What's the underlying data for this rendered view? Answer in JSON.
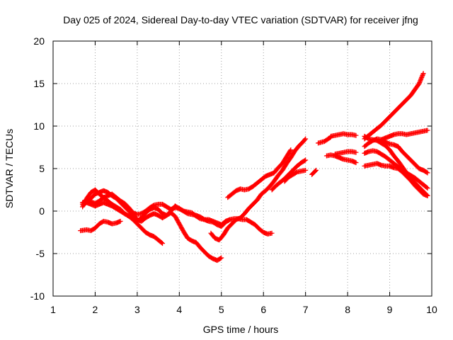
{
  "chart_data": {
    "type": "scatter",
    "title": "Day 025 of 2024, Sidereal Day-to-day VTEC variation (SDTVAR) for receiver jfng",
    "xlabel": "GPS time / hours",
    "ylabel": "SDTVAR / TECUs",
    "xlim": [
      1,
      10
    ],
    "ylim": [
      -10,
      20
    ],
    "xticks": [
      "1",
      "2",
      "3",
      "4",
      "5",
      "6",
      "7",
      "8",
      "9",
      "10"
    ],
    "yticks": [
      "-10",
      "-5",
      "0",
      "5",
      "10",
      "15",
      "20"
    ],
    "grid": true,
    "marker": "+",
    "color": "#ff0000",
    "series": [
      {
        "x": [
          1.65,
          1.8,
          1.9,
          2.0,
          2.1,
          2.2,
          2.3,
          2.4,
          2.5,
          2.6
        ],
        "y": [
          -2.3,
          -2.2,
          -2.3,
          -2.0,
          -1.5,
          -1.2,
          -1.3,
          -1.5,
          -1.4,
          -1.2
        ]
      },
      {
        "x": [
          1.7,
          1.8,
          1.9,
          2.0,
          2.1,
          2.2,
          2.3,
          2.4,
          2.5,
          2.6,
          2.7,
          2.8,
          2.9,
          3.0,
          3.1,
          3.2,
          3.3,
          3.4,
          3.5,
          3.6
        ],
        "y": [
          0.5,
          1.5,
          2.2,
          2.5,
          2.0,
          1.6,
          1.2,
          0.8,
          0.5,
          0.2,
          -0.3,
          -0.6,
          -1.0,
          -1.5,
          -2.0,
          -2.5,
          -2.8,
          -3.0,
          -3.4,
          -3.8
        ]
      },
      {
        "x": [
          1.7,
          1.8,
          1.9,
          2.0,
          2.1,
          2.2,
          2.3,
          2.4,
          2.5,
          2.6,
          2.7,
          2.8,
          2.9,
          3.0,
          3.1,
          3.2,
          3.3,
          3.4,
          3.5,
          3.6,
          3.7,
          3.8,
          3.9,
          4.0,
          4.1,
          4.2,
          4.3,
          4.4,
          4.5,
          4.6,
          4.7,
          4.8,
          4.9,
          5.0
        ],
        "y": [
          0.8,
          1.0,
          1.5,
          2.0,
          2.2,
          2.4,
          2.2,
          1.8,
          1.5,
          1.0,
          0.5,
          0.0,
          -0.5,
          -1.0,
          -1.2,
          -0.8,
          -0.5,
          -0.3,
          -0.5,
          -0.8,
          -0.5,
          -0.2,
          -0.6,
          -1.5,
          -2.4,
          -3.2,
          -3.5,
          -3.7,
          -4.3,
          -4.8,
          -5.3,
          -5.6,
          -5.8,
          -5.5
        ]
      },
      {
        "x": [
          1.7,
          1.8,
          1.9,
          2.0,
          2.1,
          2.2,
          2.3,
          2.4,
          2.5,
          2.6,
          2.7,
          2.8,
          2.9,
          3.0,
          3.1,
          3.2,
          3.3,
          3.4,
          3.5,
          3.6,
          3.7,
          3.8,
          3.9,
          4.0,
          4.1,
          4.2,
          4.3,
          4.4,
          4.5,
          4.6,
          4.7,
          4.8,
          4.9,
          5.0,
          5.1,
          5.2
        ],
        "y": [
          1.0,
          1.2,
          1.1,
          0.9,
          1.2,
          1.6,
          1.8,
          2.0,
          1.6,
          1.2,
          0.9,
          0.4,
          -0.2,
          -0.4,
          -0.3,
          0.0,
          0.4,
          0.7,
          0.8,
          0.8,
          0.5,
          0.2,
          0.4,
          0.3,
          0.0,
          -0.3,
          -0.4,
          -0.5,
          -0.7,
          -1.0,
          -1.2,
          -1.3,
          -1.6,
          -1.8,
          -1.3,
          -1.0
        ]
      },
      {
        "x": [
          1.7,
          1.8,
          1.9,
          2.0,
          2.1,
          2.2,
          2.3,
          2.4,
          2.5,
          2.6,
          2.7,
          2.8,
          2.9,
          3.0,
          3.1,
          3.2,
          3.3,
          3.4,
          3.5,
          3.6,
          3.7,
          3.8,
          3.9,
          4.0,
          4.1,
          4.2,
          4.3,
          4.4,
          4.5,
          4.6,
          4.7,
          4.8,
          4.9,
          5.0,
          5.1,
          5.2,
          5.3,
          5.4,
          5.5,
          5.6,
          5.7,
          5.8,
          5.9,
          6.0,
          6.1,
          6.2
        ],
        "y": [
          1.0,
          1.0,
          0.8,
          0.6,
          0.8,
          1.0,
          0.8,
          0.6,
          0.3,
          0.0,
          -0.3,
          -0.6,
          -0.9,
          -1.2,
          -0.8,
          -0.2,
          0.2,
          0.4,
          0.2,
          -0.3,
          -0.5,
          0.0,
          0.6,
          0.3,
          0.0,
          -0.1,
          -0.2,
          -0.6,
          -0.9,
          -1.0,
          -1.0,
          -1.2,
          -1.4,
          -1.6,
          -1.2,
          -1.0,
          -0.9,
          -0.9,
          -1.0,
          -1.0,
          -1.3,
          -1.6,
          -2.1,
          -2.5,
          -2.7,
          -2.6
        ]
      },
      {
        "x": [
          4.75,
          4.85,
          4.95,
          5.05,
          5.15,
          5.25,
          5.35,
          5.45,
          5.55,
          5.65,
          5.75,
          5.85,
          5.95,
          6.05,
          6.15,
          6.25,
          6.35,
          6.45,
          6.55,
          6.65,
          6.75,
          6.85,
          6.95,
          7.0
        ],
        "y": [
          -2.6,
          -3.2,
          -3.4,
          -2.8,
          -2.0,
          -1.5,
          -1.0,
          -0.8,
          -0.3,
          0.3,
          0.8,
          1.3,
          2.0,
          2.4,
          2.9,
          3.5,
          4.2,
          4.8,
          5.6,
          6.3,
          7.1,
          7.7,
          8.2,
          8.5
        ]
      },
      {
        "x": [
          5.15,
          5.25,
          5.35,
          5.45,
          5.55,
          5.65,
          5.75,
          5.85,
          5.95,
          6.05,
          6.15,
          6.25,
          6.35,
          6.45,
          6.55,
          6.65
        ],
        "y": [
          1.6,
          2.0,
          2.4,
          2.6,
          2.5,
          2.6,
          2.9,
          3.3,
          3.7,
          4.1,
          4.3,
          4.5,
          5.1,
          5.6,
          6.4,
          7.2
        ]
      },
      {
        "x": [
          6.2,
          6.3,
          6.4,
          6.5,
          6.6,
          6.7,
          6.8,
          6.9,
          7.0
        ],
        "y": [
          2.5,
          3.0,
          3.4,
          3.8,
          4.3,
          4.8,
          5.3,
          5.7,
          6.0
        ]
      },
      {
        "x": [
          6.5,
          6.6,
          6.7,
          6.8,
          6.9,
          7.0
        ],
        "y": [
          3.5,
          4.0,
          4.3,
          4.6,
          4.7,
          4.8
        ]
      },
      {
        "x": [
          7.15,
          7.25
        ],
        "y": [
          4.3,
          4.8
        ]
      },
      {
        "x": [
          7.3,
          7.45,
          7.6
        ],
        "y": [
          8.0,
          8.2,
          8.7
        ]
      },
      {
        "x": [
          7.5,
          7.6,
          7.7,
          7.8,
          7.9,
          8.0,
          8.1,
          8.2
        ],
        "y": [
          6.5,
          6.6,
          6.5,
          6.3,
          6.1,
          6.0,
          5.9,
          5.7
        ]
      },
      {
        "x": [
          7.6,
          7.7,
          7.8,
          7.9,
          8.0,
          8.1,
          8.2
        ],
        "y": [
          8.8,
          8.9,
          9.0,
          9.1,
          9.0,
          9.0,
          8.9
        ]
      },
      {
        "x": [
          7.7,
          7.8,
          7.9,
          8.0,
          8.1,
          8.2
        ],
        "y": [
          6.7,
          6.8,
          6.9,
          7.0,
          7.0,
          6.9
        ]
      },
      {
        "x": [
          8.4,
          8.5,
          8.6,
          8.7,
          8.8,
          8.9,
          9.0,
          9.1,
          9.2,
          9.3,
          9.4,
          9.5,
          9.6,
          9.7,
          9.8
        ],
        "y": [
          8.5,
          8.9,
          9.3,
          9.7,
          10.1,
          10.6,
          11.1,
          11.6,
          12.1,
          12.6,
          13.1,
          13.6,
          14.3,
          15.0,
          16.2
        ]
      },
      {
        "x": [
          8.4,
          8.5,
          8.6,
          8.7,
          8.8,
          8.9,
          9.0,
          9.1,
          9.2,
          9.3,
          9.4,
          9.5,
          9.6,
          9.7,
          9.8,
          9.9
        ],
        "y": [
          8.8,
          8.5,
          8.4,
          8.3,
          8.0,
          7.7,
          7.2,
          6.5,
          5.9,
          5.2,
          4.5,
          3.9,
          3.3,
          2.8,
          2.3,
          1.8
        ]
      },
      {
        "x": [
          8.4,
          8.5,
          8.6,
          8.7,
          8.8,
          8.9,
          9.0,
          9.1,
          9.2,
          9.3,
          9.4,
          9.5,
          9.6,
          9.7,
          9.8,
          9.9
        ],
        "y": [
          7.6,
          8.0,
          8.3,
          8.5,
          8.4,
          8.1,
          7.9,
          7.8,
          7.6,
          7.0,
          6.5,
          6.0,
          5.5,
          5.0,
          4.8,
          4.5
        ]
      },
      {
        "x": [
          8.4,
          8.5,
          8.6,
          8.7,
          8.8,
          8.9,
          9.0,
          9.1,
          9.2,
          9.3,
          9.4,
          9.5,
          9.6,
          9.7,
          9.8,
          9.9
        ],
        "y": [
          6.8,
          7.0,
          7.1,
          7.0,
          6.7,
          6.4,
          6.0,
          5.6,
          5.2,
          4.8,
          4.5,
          4.2,
          3.9,
          3.5,
          3.1,
          2.7
        ]
      },
      {
        "x": [
          8.4,
          8.5,
          8.6,
          8.7,
          8.8,
          8.9,
          9.0,
          9.1,
          9.2,
          9.3,
          9.4,
          9.5,
          9.6,
          9.7,
          9.8,
          9.9
        ],
        "y": [
          5.3,
          5.4,
          5.5,
          5.6,
          5.4,
          5.3,
          5.3,
          5.1,
          5.0,
          4.6,
          4.1,
          3.6,
          3.0,
          2.5,
          2.0,
          1.8
        ]
      },
      {
        "x": [
          8.8,
          8.9,
          9.0,
          9.1,
          9.2,
          9.3,
          9.4,
          9.5,
          9.6,
          9.7,
          9.8,
          9.9
        ],
        "y": [
          8.4,
          8.6,
          8.8,
          9.0,
          9.1,
          9.1,
          9.0,
          9.1,
          9.2,
          9.3,
          9.4,
          9.5
        ]
      }
    ]
  }
}
